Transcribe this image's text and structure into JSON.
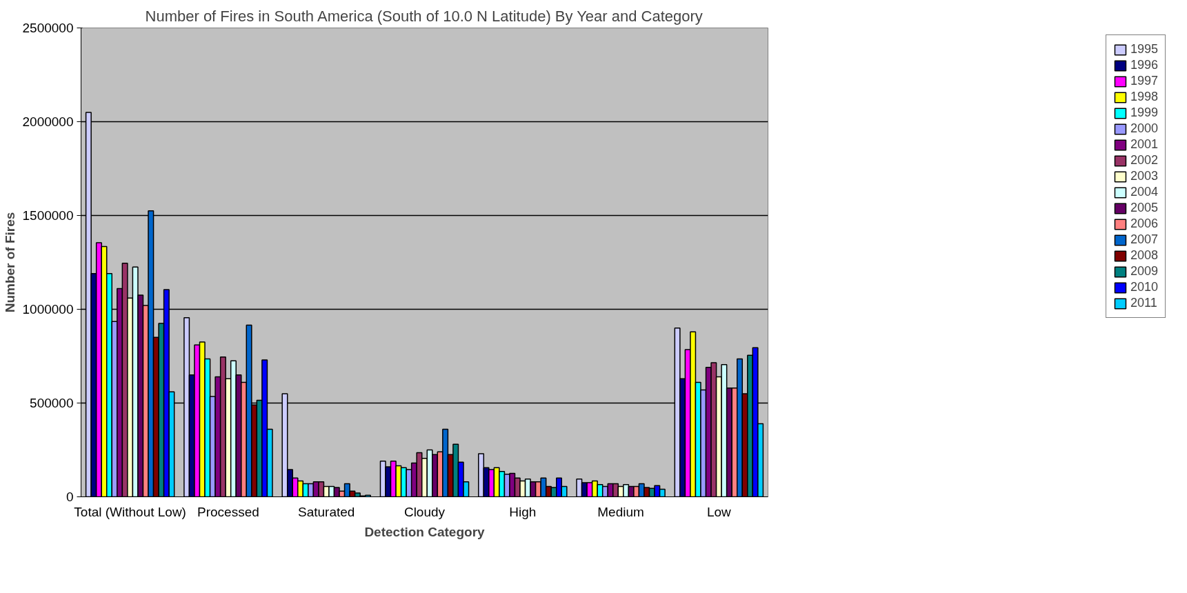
{
  "chart_data": {
    "type": "bar",
    "title": "Number of Fires in South America (South of 10.0 N Latitude) By Year and Category",
    "xlabel": "Detection Category",
    "ylabel": "Number of Fires",
    "categories": [
      "Total (Without Low)",
      "Processed",
      "Saturated",
      "Cloudy",
      "High",
      "Medium",
      "Low"
    ],
    "ylim": [
      0,
      2500000
    ],
    "yticks": [
      0,
      500000,
      1000000,
      1500000,
      2000000,
      2500000
    ],
    "grid": "y",
    "legend": "right",
    "series": [
      {
        "name": "1995",
        "color": "#ccccff",
        "values": [
          2050000,
          955000,
          550000,
          190000,
          230000,
          95000,
          900000
        ]
      },
      {
        "name": "1996",
        "color": "#000080",
        "values": [
          1190000,
          650000,
          145000,
          160000,
          155000,
          75000,
          630000
        ]
      },
      {
        "name": "1997",
        "color": "#ff00ff",
        "values": [
          1355000,
          810000,
          100000,
          190000,
          145000,
          75000,
          785000
        ]
      },
      {
        "name": "1998",
        "color": "#ffff00",
        "values": [
          1335000,
          825000,
          85000,
          165000,
          155000,
          85000,
          880000
        ]
      },
      {
        "name": "1999",
        "color": "#00ffff",
        "values": [
          1190000,
          735000,
          70000,
          155000,
          135000,
          65000,
          610000
        ]
      },
      {
        "name": "2000",
        "color": "#9999ff",
        "values": [
          935000,
          535000,
          70000,
          145000,
          120000,
          55000,
          570000
        ]
      },
      {
        "name": "2001",
        "color": "#800080",
        "values": [
          1110000,
          640000,
          80000,
          180000,
          125000,
          70000,
          690000
        ]
      },
      {
        "name": "2002",
        "color": "#993366",
        "values": [
          1245000,
          745000,
          80000,
          235000,
          100000,
          70000,
          715000
        ]
      },
      {
        "name": "2003",
        "color": "#ffffcc",
        "values": [
          1060000,
          630000,
          55000,
          205000,
          85000,
          55000,
          640000
        ]
      },
      {
        "name": "2004",
        "color": "#ccffff",
        "values": [
          1225000,
          725000,
          55000,
          250000,
          95000,
          65000,
          705000
        ]
      },
      {
        "name": "2005",
        "color": "#660066",
        "values": [
          1075000,
          650000,
          50000,
          225000,
          80000,
          55000,
          580000
        ]
      },
      {
        "name": "2006",
        "color": "#ff8080",
        "values": [
          1020000,
          610000,
          30000,
          240000,
          80000,
          55000,
          580000
        ]
      },
      {
        "name": "2007",
        "color": "#0066cc",
        "values": [
          1525000,
          915000,
          70000,
          360000,
          100000,
          70000,
          735000
        ]
      },
      {
        "name": "2008",
        "color": "#800000",
        "values": [
          850000,
          490000,
          30000,
          225000,
          55000,
          50000,
          550000
        ]
      },
      {
        "name": "2009",
        "color": "#008080",
        "values": [
          925000,
          515000,
          20000,
          280000,
          50000,
          45000,
          755000
        ]
      },
      {
        "name": "2010",
        "color": "#0000ff",
        "values": [
          1105000,
          730000,
          5000,
          185000,
          100000,
          60000,
          795000
        ]
      },
      {
        "name": "2011",
        "color": "#00ccff",
        "values": [
          560000,
          360000,
          8000,
          80000,
          55000,
          40000,
          390000
        ]
      }
    ]
  }
}
